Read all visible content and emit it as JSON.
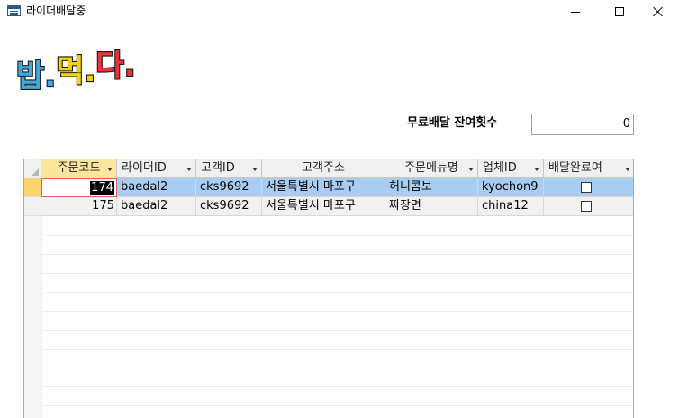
{
  "window": {
    "title": "라이더배달중"
  },
  "logo": {
    "text": "밥.먹.다.",
    "colors": [
      "#3fa9e0",
      "#f5d200",
      "#e8343c"
    ]
  },
  "free_delivery": {
    "label": "무료배달 잔여횟수",
    "value": "0"
  },
  "table": {
    "columns": [
      "주문코드",
      "라이더ID",
      "고객ID",
      "고객주소",
      "주문메뉴명",
      "업체ID",
      "배달완료여"
    ],
    "rows": [
      {
        "order_code": "174",
        "rider_id": "baedal2",
        "customer_id": "cks9692",
        "address": "서울특별시 마포구",
        "menu": "허니콤보",
        "store_id": "kyochon9",
        "delivered": false
      },
      {
        "order_code": "175",
        "rider_id": "baedal2",
        "customer_id": "cks9692",
        "address": "서울특별시 마포구",
        "menu": "짜장면",
        "store_id": "china12",
        "delivered": false
      }
    ]
  },
  "colors": {
    "selected_row": "#a9cdf2",
    "active_header": "#fce59c",
    "current_selector": "#fcd36a"
  }
}
